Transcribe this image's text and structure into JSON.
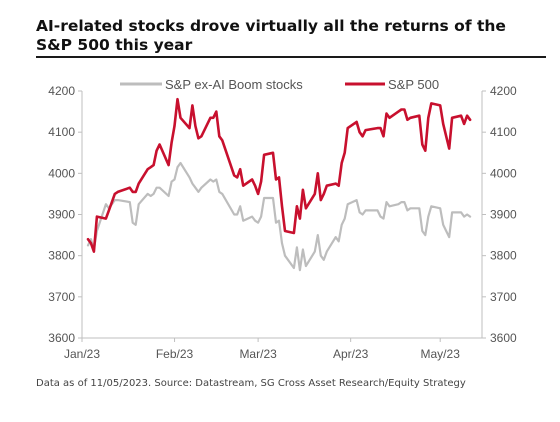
{
  "title": "AI-related stocks drove virtually all the returns of the S&P 500 this year",
  "source": "Data as of 11/05/2023. Source: Datastream, SG Cross Asset Research/Equity Strategy",
  "colors": {
    "sp500": "#c8102e",
    "exai": "#bdbdbd",
    "text": "#555555",
    "axis": "#bfbfbf"
  },
  "chart_data": {
    "type": "line",
    "title": "AI-related stocks drove virtually all the returns of the S&P 500 this year",
    "xlabel": "",
    "ylabel": "",
    "ylim": [
      3600,
      4200
    ],
    "yticks": [
      3600,
      3700,
      3800,
      3900,
      4000,
      4100,
      4200
    ],
    "y2ticks": [
      3600,
      3700,
      3800,
      3900,
      4000,
      4100,
      4200
    ],
    "xlim": [
      "2023-01-01",
      "2023-05-15"
    ],
    "xticks": [
      {
        "date": "2023-01-01",
        "label": "Jan/23"
      },
      {
        "date": "2023-02-01",
        "label": "Feb/23"
      },
      {
        "date": "2023-03-01",
        "label": "Mar/23"
      },
      {
        "date": "2023-04-01",
        "label": "Apr/23"
      },
      {
        "date": "2023-05-01",
        "label": "May/23"
      }
    ],
    "legend_position": "top",
    "grid": false,
    "series": [
      {
        "name": "S&P ex-AI Boom stocks",
        "color": "#bdbdbd",
        "points": [
          [
            "2023-01-03",
            3825
          ],
          [
            "2023-01-04",
            3840
          ],
          [
            "2023-01-05",
            3815
          ],
          [
            "2023-01-06",
            3860
          ],
          [
            "2023-01-09",
            3925
          ],
          [
            "2023-01-10",
            3915
          ],
          [
            "2023-01-11",
            3925
          ],
          [
            "2023-01-12",
            3935
          ],
          [
            "2023-01-13",
            3935
          ],
          [
            "2023-01-17",
            3930
          ],
          [
            "2023-01-18",
            3880
          ],
          [
            "2023-01-19",
            3875
          ],
          [
            "2023-01-20",
            3925
          ],
          [
            "2023-01-23",
            3950
          ],
          [
            "2023-01-24",
            3945
          ],
          [
            "2023-01-25",
            3950
          ],
          [
            "2023-01-26",
            3965
          ],
          [
            "2023-01-27",
            3965
          ],
          [
            "2023-01-30",
            3945
          ],
          [
            "2023-01-31",
            3980
          ],
          [
            "2023-02-01",
            3985
          ],
          [
            "2023-02-02",
            4015
          ],
          [
            "2023-02-03",
            4025
          ],
          [
            "2023-02-06",
            3990
          ],
          [
            "2023-02-07",
            3975
          ],
          [
            "2023-02-08",
            3965
          ],
          [
            "2023-02-09",
            3955
          ],
          [
            "2023-02-10",
            3965
          ],
          [
            "2023-02-13",
            3985
          ],
          [
            "2023-02-14",
            3980
          ],
          [
            "2023-02-15",
            3985
          ],
          [
            "2023-02-16",
            3955
          ],
          [
            "2023-02-17",
            3950
          ],
          [
            "2023-02-21",
            3900
          ],
          [
            "2023-02-22",
            3900
          ],
          [
            "2023-02-23",
            3920
          ],
          [
            "2023-02-24",
            3885
          ],
          [
            "2023-02-27",
            3895
          ],
          [
            "2023-02-28",
            3885
          ],
          [
            "2023-03-01",
            3880
          ],
          [
            "2023-03-02",
            3895
          ],
          [
            "2023-03-03",
            3940
          ],
          [
            "2023-03-06",
            3940
          ],
          [
            "2023-03-07",
            3880
          ],
          [
            "2023-03-08",
            3885
          ],
          [
            "2023-03-09",
            3830
          ],
          [
            "2023-03-10",
            3800
          ],
          [
            "2023-03-13",
            3770
          ],
          [
            "2023-03-14",
            3820
          ],
          [
            "2023-03-15",
            3765
          ],
          [
            "2023-03-16",
            3815
          ],
          [
            "2023-03-17",
            3775
          ],
          [
            "2023-03-20",
            3810
          ],
          [
            "2023-03-21",
            3850
          ],
          [
            "2023-03-22",
            3800
          ],
          [
            "2023-03-23",
            3790
          ],
          [
            "2023-03-24",
            3810
          ],
          [
            "2023-03-27",
            3845
          ],
          [
            "2023-03-28",
            3835
          ],
          [
            "2023-03-29",
            3875
          ],
          [
            "2023-03-30",
            3890
          ],
          [
            "2023-03-31",
            3925
          ],
          [
            "2023-04-03",
            3935
          ],
          [
            "2023-04-04",
            3905
          ],
          [
            "2023-04-05",
            3900
          ],
          [
            "2023-04-06",
            3910
          ],
          [
            "2023-04-10",
            3910
          ],
          [
            "2023-04-11",
            3895
          ],
          [
            "2023-04-12",
            3890
          ],
          [
            "2023-04-13",
            3930
          ],
          [
            "2023-04-14",
            3920
          ],
          [
            "2023-04-17",
            3925
          ],
          [
            "2023-04-18",
            3930
          ],
          [
            "2023-04-19",
            3930
          ],
          [
            "2023-04-20",
            3910
          ],
          [
            "2023-04-21",
            3915
          ],
          [
            "2023-04-24",
            3915
          ],
          [
            "2023-04-25",
            3860
          ],
          [
            "2023-04-26",
            3850
          ],
          [
            "2023-04-27",
            3895
          ],
          [
            "2023-04-28",
            3920
          ],
          [
            "2023-05-01",
            3915
          ],
          [
            "2023-05-02",
            3875
          ],
          [
            "2023-05-03",
            3860
          ],
          [
            "2023-05-04",
            3845
          ],
          [
            "2023-05-05",
            3905
          ],
          [
            "2023-05-08",
            3905
          ],
          [
            "2023-05-09",
            3895
          ],
          [
            "2023-05-10",
            3900
          ],
          [
            "2023-05-11",
            3895
          ]
        ]
      },
      {
        "name": "S&P 500",
        "color": "#c8102e",
        "points": [
          [
            "2023-01-03",
            3840
          ],
          [
            "2023-01-04",
            3830
          ],
          [
            "2023-01-05",
            3810
          ],
          [
            "2023-01-06",
            3895
          ],
          [
            "2023-01-09",
            3890
          ],
          [
            "2023-01-10",
            3910
          ],
          [
            "2023-01-11",
            3930
          ],
          [
            "2023-01-12",
            3950
          ],
          [
            "2023-01-13",
            3955
          ],
          [
            "2023-01-17",
            3965
          ],
          [
            "2023-01-18",
            3955
          ],
          [
            "2023-01-19",
            3955
          ],
          [
            "2023-01-20",
            3975
          ],
          [
            "2023-01-23",
            4010
          ],
          [
            "2023-01-24",
            4015
          ],
          [
            "2023-01-25",
            4020
          ],
          [
            "2023-01-26",
            4055
          ],
          [
            "2023-01-27",
            4070
          ],
          [
            "2023-01-30",
            4020
          ],
          [
            "2023-01-31",
            4075
          ],
          [
            "2023-02-01",
            4115
          ],
          [
            "2023-02-02",
            4180
          ],
          [
            "2023-02-03",
            4135
          ],
          [
            "2023-02-06",
            4110
          ],
          [
            "2023-02-07",
            4165
          ],
          [
            "2023-02-08",
            4115
          ],
          [
            "2023-02-09",
            4085
          ],
          [
            "2023-02-10",
            4090
          ],
          [
            "2023-02-13",
            4135
          ],
          [
            "2023-02-14",
            4135
          ],
          [
            "2023-02-15",
            4150
          ],
          [
            "2023-02-16",
            4090
          ],
          [
            "2023-02-17",
            4080
          ],
          [
            "2023-02-21",
            3995
          ],
          [
            "2023-02-22",
            3990
          ],
          [
            "2023-02-23",
            4010
          ],
          [
            "2023-02-24",
            3970
          ],
          [
            "2023-02-27",
            3985
          ],
          [
            "2023-02-28",
            3970
          ],
          [
            "2023-03-01",
            3950
          ],
          [
            "2023-03-02",
            3980
          ],
          [
            "2023-03-03",
            4045
          ],
          [
            "2023-03-06",
            4050
          ],
          [
            "2023-03-07",
            3985
          ],
          [
            "2023-03-08",
            3990
          ],
          [
            "2023-03-09",
            3920
          ],
          [
            "2023-03-10",
            3860
          ],
          [
            "2023-03-13",
            3855
          ],
          [
            "2023-03-14",
            3920
          ],
          [
            "2023-03-15",
            3890
          ],
          [
            "2023-03-16",
            3960
          ],
          [
            "2023-03-17",
            3915
          ],
          [
            "2023-03-20",
            3950
          ],
          [
            "2023-03-21",
            4000
          ],
          [
            "2023-03-22",
            3935
          ],
          [
            "2023-03-23",
            3950
          ],
          [
            "2023-03-24",
            3970
          ],
          [
            "2023-03-27",
            3975
          ],
          [
            "2023-03-28",
            3970
          ],
          [
            "2023-03-29",
            4025
          ],
          [
            "2023-03-30",
            4050
          ],
          [
            "2023-03-31",
            4110
          ],
          [
            "2023-04-03",
            4125
          ],
          [
            "2023-04-04",
            4100
          ],
          [
            "2023-04-05",
            4090
          ],
          [
            "2023-04-06",
            4105
          ],
          [
            "2023-04-10",
            4110
          ],
          [
            "2023-04-11",
            4110
          ],
          [
            "2023-04-12",
            4090
          ],
          [
            "2023-04-13",
            4145
          ],
          [
            "2023-04-14",
            4135
          ],
          [
            "2023-04-17",
            4150
          ],
          [
            "2023-04-18",
            4155
          ],
          [
            "2023-04-19",
            4155
          ],
          [
            "2023-04-20",
            4130
          ],
          [
            "2023-04-21",
            4135
          ],
          [
            "2023-04-24",
            4140
          ],
          [
            "2023-04-25",
            4070
          ],
          [
            "2023-04-26",
            4055
          ],
          [
            "2023-04-27",
            4135
          ],
          [
            "2023-04-28",
            4170
          ],
          [
            "2023-05-01",
            4165
          ],
          [
            "2023-05-02",
            4120
          ],
          [
            "2023-05-03",
            4090
          ],
          [
            "2023-05-04",
            4060
          ],
          [
            "2023-05-05",
            4135
          ],
          [
            "2023-05-08",
            4140
          ],
          [
            "2023-05-09",
            4120
          ],
          [
            "2023-05-10",
            4140
          ],
          [
            "2023-05-11",
            4130
          ]
        ]
      }
    ]
  }
}
